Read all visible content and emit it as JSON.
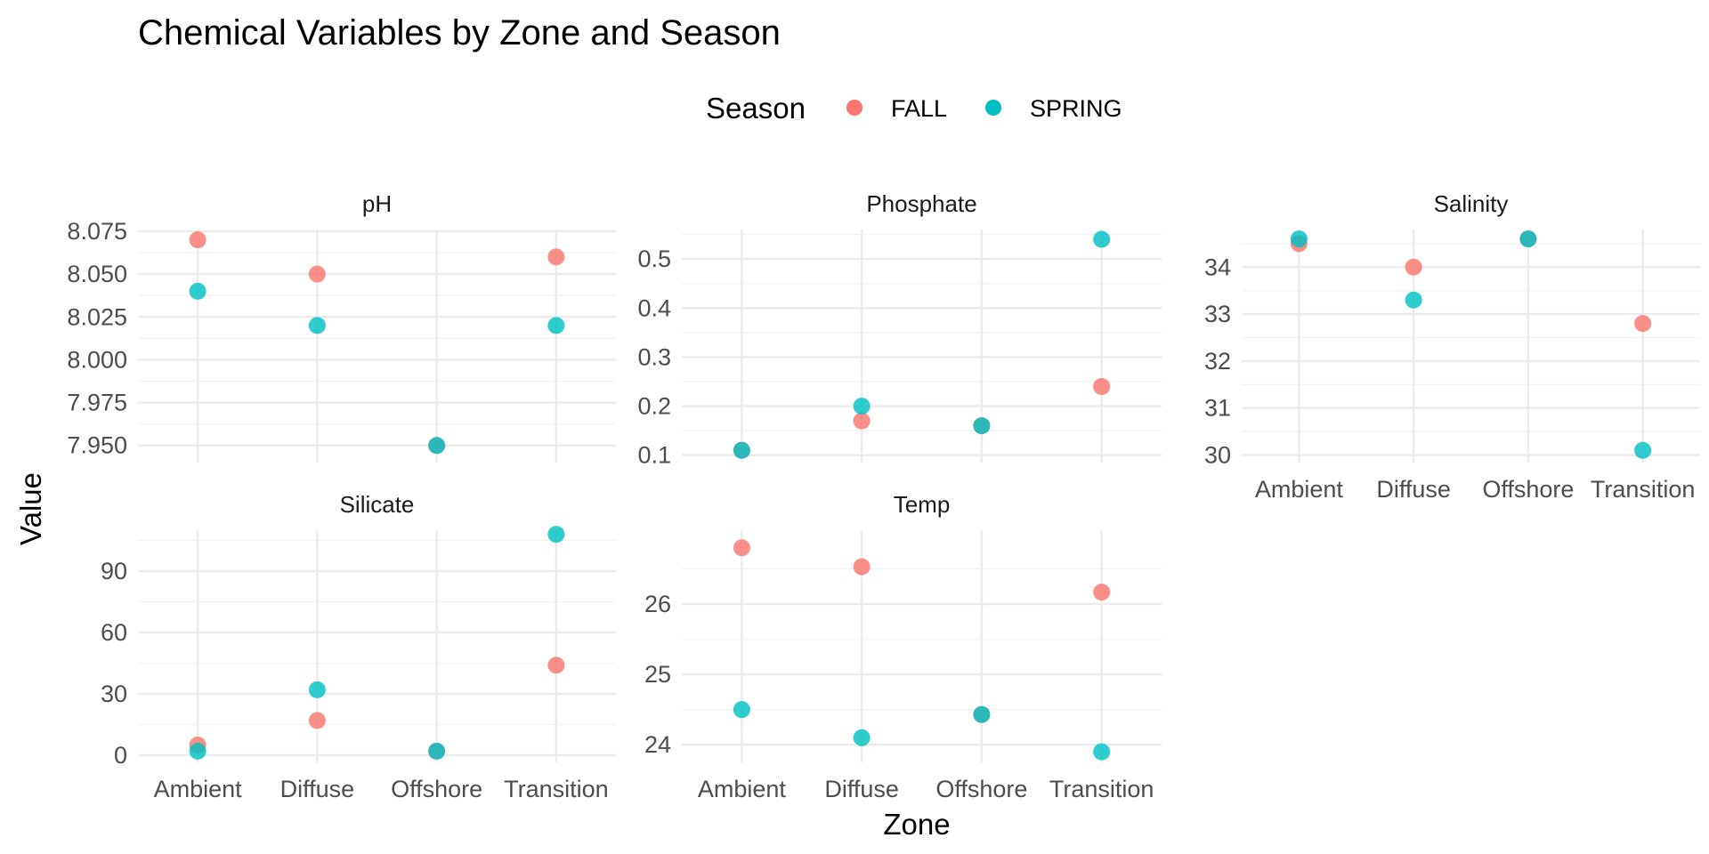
{
  "chart_data": {
    "type": "scatter",
    "title": "Chemical Variables by Zone and Season",
    "xlabel": "Zone",
    "ylabel": "Value",
    "legend": {
      "title": "Season",
      "position": "top",
      "entries": [
        {
          "name": "FALL",
          "color": "#F8766D"
        },
        {
          "name": "SPRING",
          "color": "#00BFC4"
        }
      ]
    },
    "categories": [
      "Ambient",
      "Diffuse",
      "Offshore",
      "Transition"
    ],
    "grid": true,
    "facets": [
      {
        "name": "pH",
        "ylim": [
          7.94,
          8.076
        ],
        "yticks": [
          "7.950",
          "7.975",
          "8.000",
          "8.025",
          "8.050",
          "8.075"
        ],
        "series": [
          {
            "name": "FALL",
            "values": [
              8.07,
              8.05,
              7.95,
              8.06
            ]
          },
          {
            "name": "SPRING",
            "values": [
              8.04,
              8.02,
              7.95,
              8.02
            ]
          }
        ]
      },
      {
        "name": "Phosphate",
        "ylim": [
          0.085,
          0.56
        ],
        "yticks": [
          "0.1",
          "0.2",
          "0.3",
          "0.4",
          "0.5"
        ],
        "series": [
          {
            "name": "FALL",
            "values": [
              0.11,
              0.17,
              0.16,
              0.24
            ]
          },
          {
            "name": "SPRING",
            "values": [
              0.11,
              0.2,
              0.16,
              0.54
            ]
          }
        ]
      },
      {
        "name": "Salinity",
        "ylim": [
          29.84,
          34.8
        ],
        "yticks": [
          "30",
          "31",
          "32",
          "33",
          "34"
        ],
        "series": [
          {
            "name": "FALL",
            "values": [
              34.5,
              34.0,
              34.6,
              32.8
            ]
          },
          {
            "name": "SPRING",
            "values": [
              34.6,
              33.3,
              34.6,
              30.1
            ]
          }
        ]
      },
      {
        "name": "Silicate",
        "ylim": [
          -3.5,
          110
        ],
        "yticks": [
          "0",
          "30",
          "60",
          "90"
        ],
        "series": [
          {
            "name": "FALL",
            "values": [
              5,
              17,
              2,
              44
            ]
          },
          {
            "name": "SPRING",
            "values": [
              2,
              32,
              2,
              108
            ]
          }
        ]
      },
      {
        "name": "Temp",
        "ylim": [
          23.75,
          27.05
        ],
        "yticks": [
          "24",
          "25",
          "26"
        ],
        "series": [
          {
            "name": "FALL",
            "values": [
              26.8,
              26.53,
              24.43,
              26.17
            ]
          },
          {
            "name": "SPRING",
            "values": [
              24.5,
              24.1,
              24.43,
              23.9
            ]
          }
        ]
      }
    ]
  }
}
